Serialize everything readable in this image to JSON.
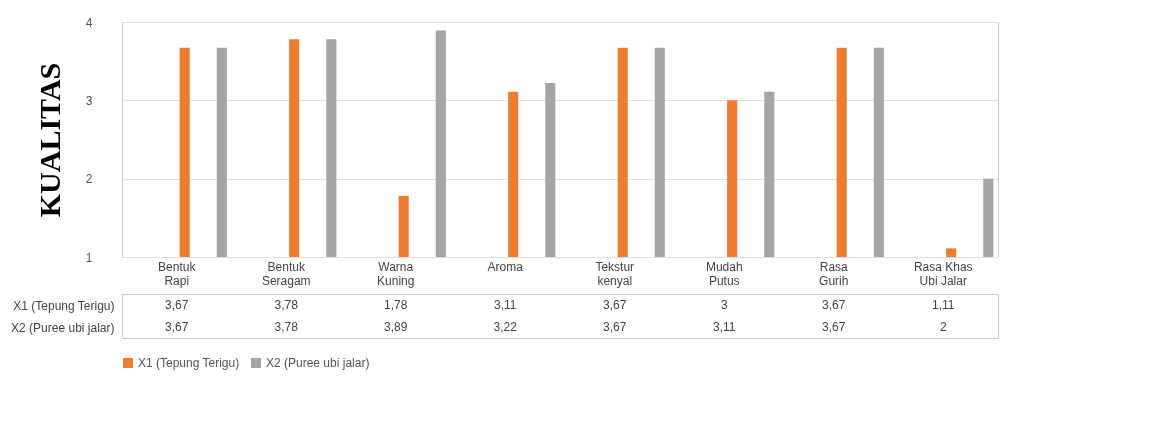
{
  "chart_data": {
    "type": "bar",
    "ylabel": "KUALITAS",
    "categories": [
      "Bentuk Rapi",
      "Bentuk Seragam",
      "Warna Kuning",
      "Aroma",
      "Tekstur kenyal",
      "Mudah Putus",
      "Rasa Gurih",
      "Rasa Khas Ubi Jalar"
    ],
    "series": [
      {
        "name": "X1 (Tepung Terigu)",
        "color": "#ed7d31",
        "values": [
          3.67,
          3.78,
          1.78,
          3.11,
          3.67,
          3,
          3.67,
          1.11
        ],
        "value_labels": [
          "3,67",
          "3,78",
          "1,78",
          "3,11",
          "3,67",
          "3",
          "3,67",
          "1,11"
        ]
      },
      {
        "name": "X2 (Puree ubi jalar)",
        "color": "#a5a5a5",
        "values": [
          3.67,
          3.78,
          3.89,
          3.22,
          3.67,
          3.11,
          3.67,
          2
        ],
        "value_labels": [
          "3,67",
          "3,78",
          "3,89",
          "3,22",
          "3,67",
          "3,11",
          "3,67",
          "2"
        ]
      }
    ],
    "ylim": [
      1,
      4
    ],
    "yticks": [
      1,
      2,
      3,
      4
    ],
    "grid": "y",
    "legend": "bottom"
  }
}
